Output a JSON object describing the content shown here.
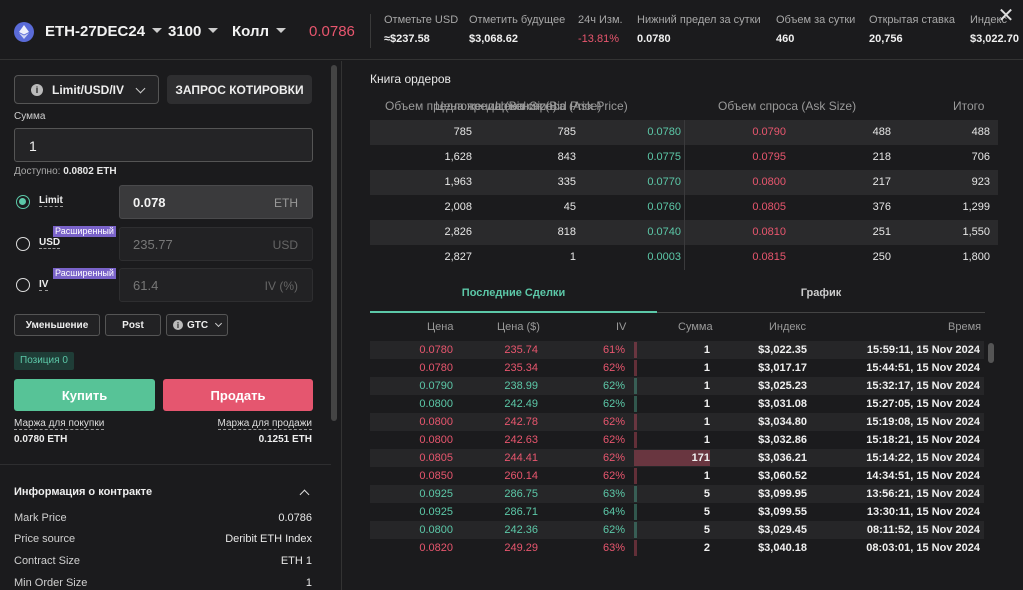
{
  "header": {
    "instrument": "ETH-27DEC24",
    "strike": "3100",
    "type": "Колл",
    "mark_price": "0.0786",
    "stats": [
      {
        "label": "Отметьте USD",
        "value": "≈$237.58"
      },
      {
        "label": "Отметить будущее",
        "value": "$3,068.62"
      },
      {
        "label": "24ч Изм.",
        "value": "-13.81%"
      },
      {
        "label": "Нижний предел за сутки",
        "value": "0.0780"
      },
      {
        "label": "Объем за сутки",
        "value": "460"
      },
      {
        "label": "Открытая ставка",
        "value": "20,756"
      },
      {
        "label": "Индекс",
        "value": "$3,022.70"
      }
    ],
    "close_icon": "close-icon"
  },
  "order_form": {
    "order_type": "Limit/USD/IV",
    "quote_button": "ЗАПРОС КОТИРОВКИ",
    "amount_label": "Сумма",
    "amount_value": "1",
    "available_label": "Доступно:",
    "available_value": "0.0802 ETH",
    "price_modes": [
      {
        "label": "Limit",
        "badge": "",
        "value": "0.078",
        "unit": "ETH",
        "selected": true
      },
      {
        "label": "USD",
        "badge": "Расширенный",
        "value": "235.77",
        "unit": "USD",
        "selected": false
      },
      {
        "label": "IV",
        "badge": "Расширенный",
        "value": "61.4",
        "unit": "IV (%)",
        "selected": false
      }
    ],
    "reduce_label": "Уменьшение",
    "post_label": "Post",
    "tif_label": "GTC",
    "position_label": "Позиция 0",
    "buy_label": "Купить",
    "sell_label": "Продать",
    "buy_margin_label": "Маржа для покупки",
    "buy_margin_value": "0.0780 ETH",
    "sell_margin_label": "Маржа для продажи",
    "sell_margin_value": "0.1251 ETH"
  },
  "contract_info": {
    "title": "Информация о контракте",
    "rows": [
      {
        "k": "Mark Price",
        "v": "0.0786"
      },
      {
        "k": "Price source",
        "v": "Deribit ETH Index"
      },
      {
        "k": "Contract Size",
        "v": "ETH 1"
      },
      {
        "k": "Min Order Size",
        "v": "1"
      }
    ]
  },
  "order_book": {
    "title": "Книга ордеров",
    "headers": [
      "Объем предложения (Bid Size)",
      "Цена предложения (Bid Price)",
      "Цена спроса (Ask Price)",
      "Объем спроса (Ask Size)",
      "Итого"
    ],
    "rows": [
      {
        "total_bid": "785",
        "bid_size": "785",
        "bid": "0.0780",
        "ask": "0.0790",
        "ask_size": "488",
        "total_ask": "488"
      },
      {
        "total_bid": "1,628",
        "bid_size": "843",
        "bid": "0.0775",
        "ask": "0.0795",
        "ask_size": "218",
        "total_ask": "706"
      },
      {
        "total_bid": "1,963",
        "bid_size": "335",
        "bid": "0.0770",
        "ask": "0.0800",
        "ask_size": "217",
        "total_ask": "923"
      },
      {
        "total_bid": "2,008",
        "bid_size": "45",
        "bid": "0.0760",
        "ask": "0.0805",
        "ask_size": "376",
        "total_ask": "1,299"
      },
      {
        "total_bid": "2,826",
        "bid_size": "818",
        "bid": "0.0740",
        "ask": "0.0810",
        "ask_size": "251",
        "total_ask": "1,550"
      },
      {
        "total_bid": "2,827",
        "bid_size": "1",
        "bid": "0.0003",
        "ask": "0.0815",
        "ask_size": "250",
        "total_ask": "1,800"
      }
    ]
  },
  "tabs": {
    "trades": "Последние Сделки",
    "chart": "График"
  },
  "trades": {
    "headers": [
      "Цена",
      "Цена ($)",
      "IV",
      "Сумма",
      "Индекс",
      "Время"
    ],
    "rows": [
      {
        "price": "0.0780",
        "usd": "235.74",
        "iv": "61%",
        "amount": "1",
        "index": "$3,022.35",
        "time": "15:59:11, 15 Nov 2024",
        "side": "sell"
      },
      {
        "price": "0.0780",
        "usd": "235.34",
        "iv": "62%",
        "amount": "1",
        "index": "$3,017.17",
        "time": "15:44:51, 15 Nov 2024",
        "side": "sell"
      },
      {
        "price": "0.0790",
        "usd": "238.99",
        "iv": "62%",
        "amount": "1",
        "index": "$3,025.23",
        "time": "15:32:17, 15 Nov 2024",
        "side": "buy"
      },
      {
        "price": "0.0800",
        "usd": "242.49",
        "iv": "62%",
        "amount": "1",
        "index": "$3,031.08",
        "time": "15:27:05, 15 Nov 2024",
        "side": "buy"
      },
      {
        "price": "0.0800",
        "usd": "242.78",
        "iv": "62%",
        "amount": "1",
        "index": "$3,034.80",
        "time": "15:19:08, 15 Nov 2024",
        "side": "sell"
      },
      {
        "price": "0.0800",
        "usd": "242.63",
        "iv": "62%",
        "amount": "1",
        "index": "$3,032.86",
        "time": "15:18:21, 15 Nov 2024",
        "side": "sell"
      },
      {
        "price": "0.0805",
        "usd": "244.41",
        "iv": "62%",
        "amount": "171",
        "index": "$3,036.21",
        "time": "15:14:22, 15 Nov 2024",
        "side": "sell"
      },
      {
        "price": "0.0850",
        "usd": "260.14",
        "iv": "62%",
        "amount": "1",
        "index": "$3,060.52",
        "time": "14:34:51, 15 Nov 2024",
        "side": "sell"
      },
      {
        "price": "0.0925",
        "usd": "286.75",
        "iv": "63%",
        "amount": "5",
        "index": "$3,099.95",
        "time": "13:56:21, 15 Nov 2024",
        "side": "buy"
      },
      {
        "price": "0.0925",
        "usd": "286.71",
        "iv": "64%",
        "amount": "5",
        "index": "$3,099.55",
        "time": "13:30:11, 15 Nov 2024",
        "side": "buy"
      },
      {
        "price": "0.0800",
        "usd": "242.36",
        "iv": "62%",
        "amount": "5",
        "index": "$3,029.45",
        "time": "08:11:52, 15 Nov 2024",
        "side": "buy"
      },
      {
        "price": "0.0820",
        "usd": "249.29",
        "iv": "63%",
        "amount": "2",
        "index": "$3,040.18",
        "time": "08:03:01, 15 Nov 2024",
        "side": "sell"
      }
    ]
  },
  "colors": {
    "buy": "#5cc8a8",
    "sell": "#e8566e",
    "badge": "#7a63c9"
  }
}
